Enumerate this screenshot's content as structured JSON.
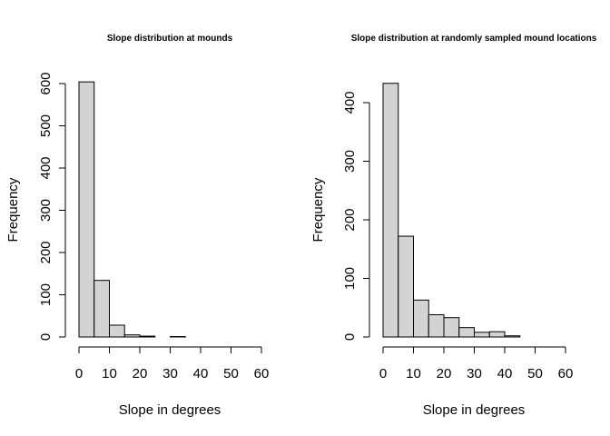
{
  "chart_data": [
    {
      "type": "bar",
      "title": "Slope distribution at mounds",
      "xlabel": "Slope in degrees",
      "ylabel": "Frequency",
      "bin_edges": [
        0,
        5,
        10,
        15,
        20,
        25,
        30,
        35,
        40,
        45,
        50,
        55,
        60
      ],
      "values": [
        604,
        134,
        28,
        5,
        2,
        0,
        1,
        0,
        0,
        0,
        0,
        0
      ],
      "xlim": [
        0,
        60
      ],
      "ylim": [
        0,
        600
      ],
      "x_ticks": [
        0,
        10,
        20,
        30,
        40,
        50,
        60
      ],
      "y_ticks": [
        0,
        100,
        200,
        300,
        400,
        500,
        600
      ],
      "grid": false
    },
    {
      "type": "bar",
      "title": "Slope distribution at randomly sampled mound locations",
      "xlabel": "Slope in degrees",
      "ylabel": "Frequency",
      "bin_edges": [
        0,
        5,
        10,
        15,
        20,
        25,
        30,
        35,
        40,
        45,
        50,
        55,
        60
      ],
      "values": [
        433,
        172,
        63,
        38,
        33,
        16,
        8,
        9,
        2,
        0,
        0,
        0
      ],
      "xlim": [
        0,
        60
      ],
      "ylim": [
        0,
        400
      ],
      "x_ticks": [
        0,
        10,
        20,
        30,
        40,
        50,
        60
      ],
      "y_ticks": [
        0,
        100,
        200,
        300,
        400
      ],
      "grid": false
    }
  ]
}
